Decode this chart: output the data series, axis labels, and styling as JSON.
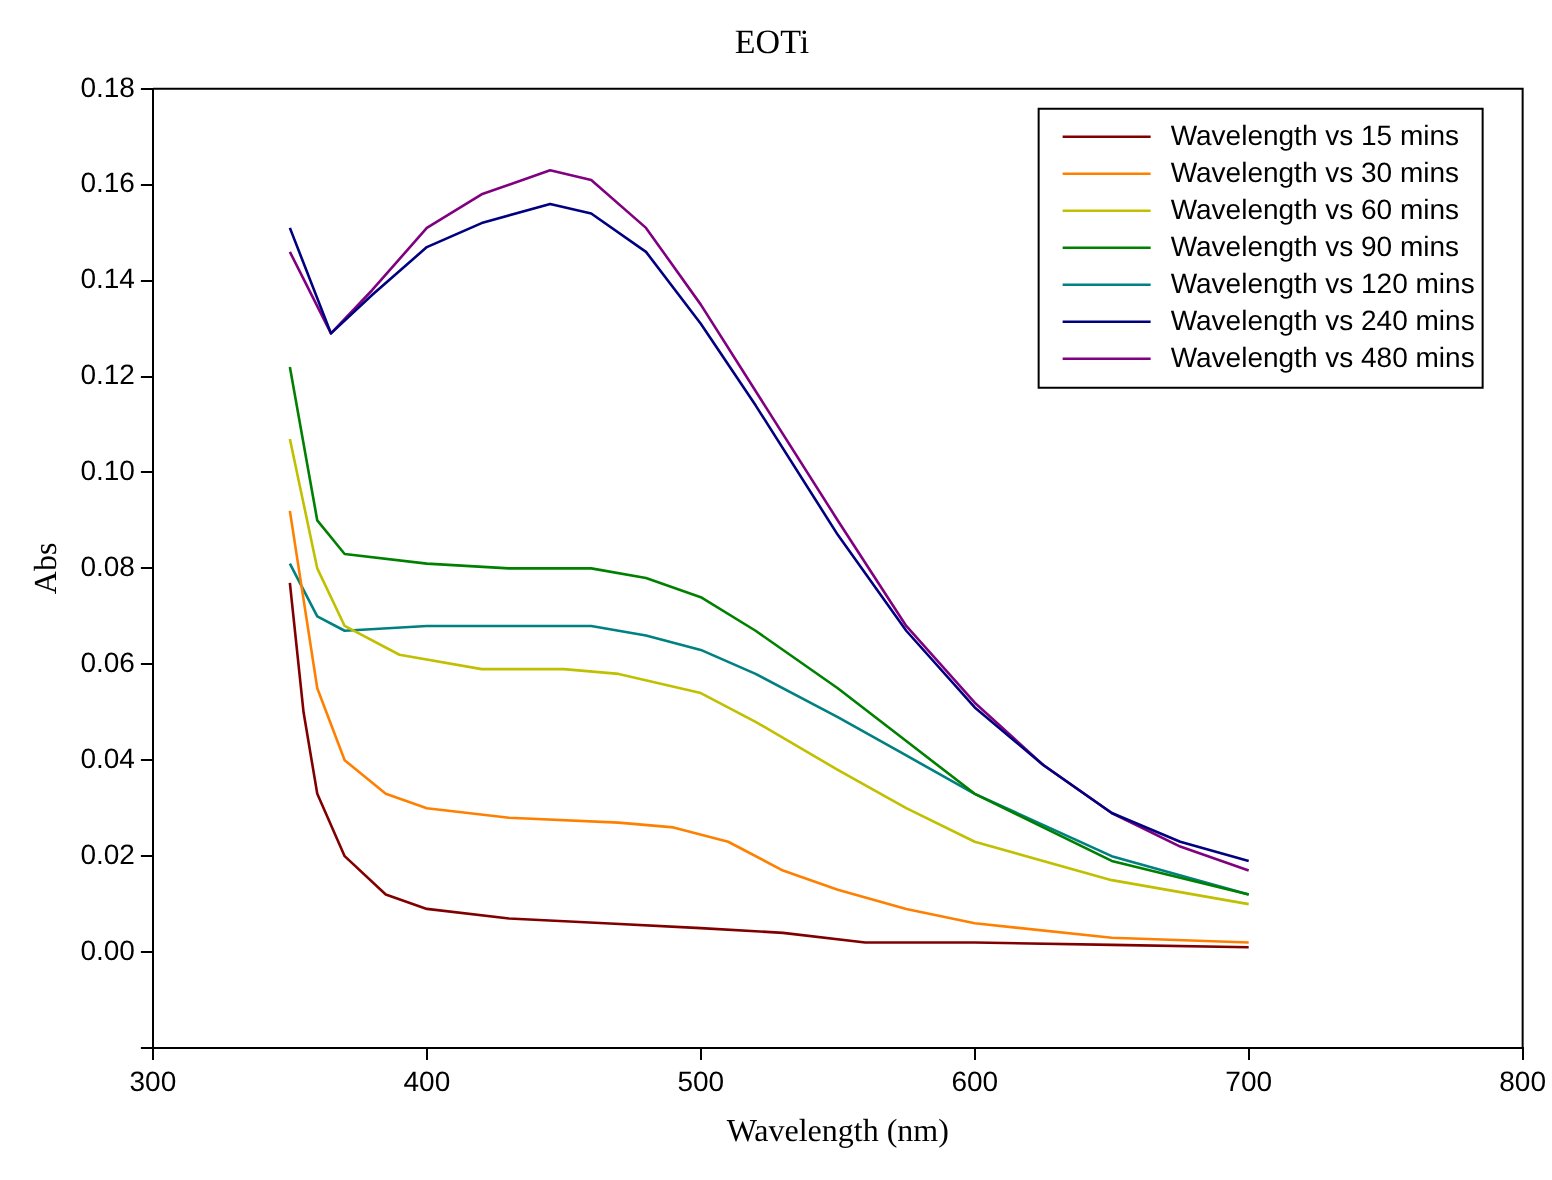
{
  "chart_data": {
    "type": "line",
    "title": "EOTi",
    "xlabel": "Wavelength (nm)",
    "ylabel": "Abs",
    "xlim": [
      300,
      800
    ],
    "xticks": [
      300,
      400,
      500,
      600,
      700,
      800
    ],
    "ylim": [
      -0.02,
      0.18
    ],
    "yticks": [
      {
        "value": -0.02,
        "label": null
      },
      {
        "value": 0,
        "label": "0.00"
      },
      {
        "value": 0.02,
        "label": "0.02"
      },
      {
        "value": 0.04,
        "label": "0.04"
      },
      {
        "value": 0.06,
        "label": "0.06"
      },
      {
        "value": 0.08,
        "label": "0.08"
      },
      {
        "value": 0.1,
        "label": "0.10"
      },
      {
        "value": 0.12,
        "label": "0.12"
      },
      {
        "value": 0.14,
        "label": "0.14"
      },
      {
        "value": 0.16,
        "label": "0.16"
      },
      {
        "value": 0.18,
        "label": "0.18"
      }
    ],
    "legend": "top right",
    "grid": false,
    "marker": "none",
    "series": [
      {
        "name": "Wavelength vs 15 mins",
        "color": "#800000",
        "x": [
          350,
          355,
          360,
          370,
          385,
          400,
          430,
          465,
          500,
          530,
          560,
          600,
          650,
          700
        ],
        "values": [
          0.077,
          0.05,
          0.033,
          0.02,
          0.012,
          0.009,
          0.007,
          0.006,
          0.005,
          0.004,
          0.002,
          0.002,
          0.0015,
          0.001
        ]
      },
      {
        "name": "Wavelength vs 30 mins",
        "color": "#ff8000",
        "x": [
          350,
          360,
          370,
          385,
          400,
          430,
          470,
          490,
          510,
          530,
          550,
          575,
          600,
          650,
          700
        ],
        "values": [
          0.092,
          0.055,
          0.04,
          0.033,
          0.03,
          0.028,
          0.027,
          0.026,
          0.023,
          0.017,
          0.013,
          0.009,
          0.006,
          0.003,
          0.002
        ]
      },
      {
        "name": "Wavelength vs 60 mins",
        "color": "#c0c000",
        "x": [
          350,
          360,
          370,
          390,
          420,
          450,
          470,
          500,
          520,
          550,
          575,
          600,
          650,
          700
        ],
        "values": [
          0.107,
          0.08,
          0.068,
          0.062,
          0.059,
          0.059,
          0.058,
          0.054,
          0.048,
          0.038,
          0.03,
          0.023,
          0.015,
          0.01
        ]
      },
      {
        "name": "Wavelength vs 90 mins",
        "color": "#008000",
        "x": [
          350,
          360,
          370,
          400,
          430,
          460,
          480,
          500,
          520,
          550,
          575,
          600,
          650,
          700
        ],
        "values": [
          0.122,
          0.09,
          0.083,
          0.081,
          0.08,
          0.08,
          0.078,
          0.074,
          0.067,
          0.055,
          0.044,
          0.033,
          0.019,
          0.012
        ]
      },
      {
        "name": "Wavelength vs 120 mins",
        "color": "#008080",
        "x": [
          350,
          360,
          370,
          400,
          430,
          460,
          480,
          500,
          520,
          550,
          575,
          600,
          650,
          700
        ],
        "values": [
          0.081,
          0.07,
          0.067,
          0.068,
          0.068,
          0.068,
          0.066,
          0.063,
          0.058,
          0.049,
          0.041,
          0.033,
          0.02,
          0.012
        ]
      },
      {
        "name": "Wavelength vs 240 mins",
        "color": "#000080",
        "x": [
          350,
          365,
          380,
          400,
          420,
          445,
          460,
          480,
          500,
          520,
          550,
          575,
          600,
          625,
          650,
          675,
          700
        ],
        "values": [
          0.151,
          0.129,
          0.137,
          0.147,
          0.152,
          0.156,
          0.154,
          0.146,
          0.131,
          0.114,
          0.087,
          0.067,
          0.051,
          0.039,
          0.029,
          0.023,
          0.019
        ]
      },
      {
        "name": "Wavelength vs 480 mins",
        "color": "#800080",
        "x": [
          350,
          365,
          380,
          400,
          420,
          445,
          460,
          480,
          500,
          520,
          550,
          575,
          600,
          625,
          650,
          675,
          700
        ],
        "values": [
          0.146,
          0.129,
          0.138,
          0.151,
          0.158,
          0.163,
          0.161,
          0.151,
          0.135,
          0.117,
          0.09,
          0.068,
          0.052,
          0.039,
          0.029,
          0.022,
          0.017
        ]
      }
    ]
  }
}
